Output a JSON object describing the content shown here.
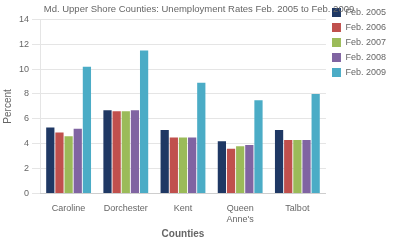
{
  "chart_data": {
    "type": "bar",
    "title": "Md. Upper Shore Counties: Unemployment Rates Feb. 2005 to Feb. 2009",
    "xlabel": "Counties",
    "ylabel": "Percent",
    "categories": [
      "Caroline",
      "Dorchester",
      "Kent",
      "Queen\nAnne's",
      "Talbot"
    ],
    "series": [
      {
        "name": "Feb. 2005",
        "color": "#1F3864",
        "values": [
          5.3,
          6.7,
          5.1,
          4.2,
          5.1
        ]
      },
      {
        "name": "Feb. 2006",
        "color": "#C0504D",
        "values": [
          4.9,
          6.6,
          4.5,
          3.6,
          4.3
        ]
      },
      {
        "name": "Feb. 2007",
        "color": "#9BBB59",
        "values": [
          4.6,
          6.6,
          4.5,
          3.8,
          4.3
        ]
      },
      {
        "name": "Feb. 2008",
        "color": "#8064A2",
        "values": [
          5.2,
          6.7,
          4.5,
          3.9,
          4.3
        ]
      },
      {
        "name": "Feb. 2009",
        "color": "#4BACC6",
        "values": [
          10.2,
          11.5,
          8.9,
          7.5,
          8.0
        ]
      }
    ],
    "ylim": [
      0,
      14
    ],
    "yticks": [
      0,
      2,
      4,
      6,
      8,
      10,
      12,
      14
    ],
    "grid": true,
    "legend": "right"
  }
}
